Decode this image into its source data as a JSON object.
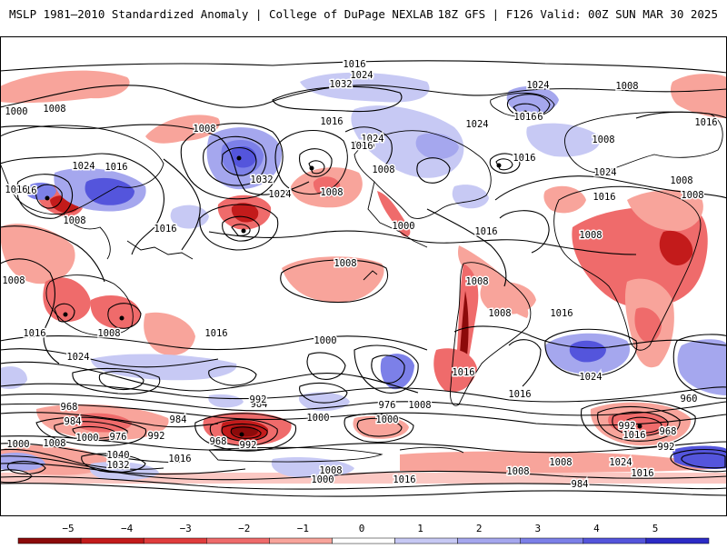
{
  "header": {
    "title_left": "MSLP 1981–2010 Standardized Anomaly | College of DuPage NEXLAB",
    "title_right": "18Z GFS | F126 Valid: 00Z SUN MAR 30 2025"
  },
  "map": {
    "isobar_labels": [
      {
        "id": "l1",
        "text": "1016"
      },
      {
        "id": "l2",
        "text": "1024"
      },
      {
        "id": "l3",
        "text": "1032"
      },
      {
        "id": "l4",
        "text": "1008"
      },
      {
        "id": "l5",
        "text": "1024"
      },
      {
        "id": "l6",
        "text": "1016"
      },
      {
        "id": "l7",
        "text": "1008"
      },
      {
        "id": "l8",
        "text": "1000"
      },
      {
        "id": "l9",
        "text": "1008"
      },
      {
        "id": "l10",
        "text": "1016"
      },
      {
        "id": "l11",
        "text": "1024"
      },
      {
        "id": "l12",
        "text": "1016"
      },
      {
        "id": "l13",
        "text": "1024"
      },
      {
        "id": "l14",
        "text": "1016"
      },
      {
        "id": "l15",
        "text": "1008"
      },
      {
        "id": "l16",
        "text": "1032"
      },
      {
        "id": "l17",
        "text": "1024"
      },
      {
        "id": "l18",
        "text": "1008"
      },
      {
        "id": "l19",
        "text": "1016"
      },
      {
        "id": "l20",
        "text": "1024"
      },
      {
        "id": "l21",
        "text": "1016"
      },
      {
        "id": "l22",
        "text": "1008"
      },
      {
        "id": "l23",
        "text": "1016"
      },
      {
        "id": "l24",
        "text": "1000"
      },
      {
        "id": "l25",
        "text": "1008"
      },
      {
        "id": "l26",
        "text": "1016"
      },
      {
        "id": "l27",
        "text": "1008"
      },
      {
        "id": "l28",
        "text": "1008"
      },
      {
        "id": "l29",
        "text": "1016"
      },
      {
        "id": "l30",
        "text": "1008"
      },
      {
        "id": "l31",
        "text": "1024"
      },
      {
        "id": "l32",
        "text": "1016"
      },
      {
        "id": "l33",
        "text": "1008"
      },
      {
        "id": "l34",
        "text": "1016"
      },
      {
        "id": "l35",
        "text": "1008"
      },
      {
        "id": "l36",
        "text": "1016"
      },
      {
        "id": "l37",
        "text": "1008"
      },
      {
        "id": "l38",
        "text": "1008"
      },
      {
        "id": "l39",
        "text": "1016"
      },
      {
        "id": "l40",
        "text": "1024"
      },
      {
        "id": "l41",
        "text": "1016"
      },
      {
        "id": "l42",
        "text": "1024"
      },
      {
        "id": "l43",
        "text": "1008"
      },
      {
        "id": "l44",
        "text": "1016"
      },
      {
        "id": "l45",
        "text": "1008"
      },
      {
        "id": "l46",
        "text": "1016"
      },
      {
        "id": "l47",
        "text": "1000"
      },
      {
        "id": "l48",
        "text": "1016"
      },
      {
        "id": "l49",
        "text": "976"
      },
      {
        "id": "l50",
        "text": "968"
      },
      {
        "id": "l51",
        "text": "984"
      },
      {
        "id": "l52",
        "text": "1000"
      },
      {
        "id": "l53",
        "text": "1008"
      },
      {
        "id": "l54",
        "text": "1000"
      },
      {
        "id": "l55",
        "text": "976"
      },
      {
        "id": "l56",
        "text": "992"
      },
      {
        "id": "l57",
        "text": "1040"
      },
      {
        "id": "l58",
        "text": "1032"
      },
      {
        "id": "l59",
        "text": "1016"
      },
      {
        "id": "l60",
        "text": "984"
      },
      {
        "id": "l61",
        "text": "968"
      },
      {
        "id": "l62",
        "text": "992"
      },
      {
        "id": "l63",
        "text": "984"
      },
      {
        "id": "l64",
        "text": "992"
      },
      {
        "id": "l65",
        "text": "1000"
      },
      {
        "id": "l66",
        "text": "1008"
      },
      {
        "id": "l67",
        "text": "1000"
      },
      {
        "id": "l68",
        "text": "1000"
      },
      {
        "id": "l69",
        "text": "1008"
      },
      {
        "id": "l70",
        "text": "1016"
      },
      {
        "id": "l71",
        "text": "984"
      },
      {
        "id": "l72",
        "text": "992"
      },
      {
        "id": "l73",
        "text": "960"
      },
      {
        "id": "l74",
        "text": "968"
      },
      {
        "id": "l75",
        "text": "1016"
      },
      {
        "id": "l76",
        "text": "992"
      },
      {
        "id": "l77",
        "text": "1008"
      },
      {
        "id": "l78",
        "text": "1024"
      },
      {
        "id": "l79",
        "text": "1016"
      },
      {
        "id": "l80",
        "text": "1008"
      },
      {
        "id": "l81",
        "text": "1016"
      }
    ]
  },
  "colorbar": {
    "ticks": [
      "−5",
      "−4",
      "−3",
      "−2",
      "−1",
      "0",
      "1",
      "2",
      "3",
      "4",
      "5"
    ],
    "colors": [
      "#8c0a0a",
      "#c31b1b",
      "#e03c3c",
      "#ef6b6b",
      "#f8a49b",
      "#ffffff",
      "#c7c9f4",
      "#a5a7ee",
      "#7c80e8",
      "#5455dc",
      "#2c2bc6"
    ]
  }
}
